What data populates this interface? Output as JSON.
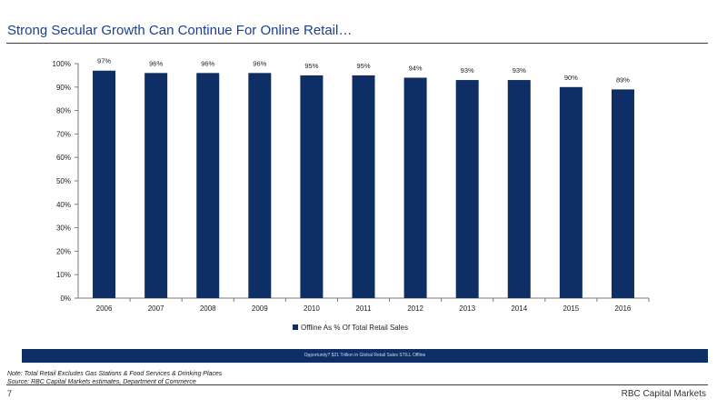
{
  "slide": {
    "title": "Strong Secular Growth Can Continue For Online Retail…",
    "banner": "Opportunity? $21 Trillion in Global Retail Sales STILL Offline",
    "note": "Note: Total Retail Excludes Gas Stations & Food Services & Drinking Places",
    "source": "Source: RBC Capital Markets estimates, Department of Commerce",
    "page_number": "7",
    "brand": "RBC Capital Markets"
  },
  "colors": {
    "bar": "#0d2f66",
    "title": "#1d3f8f"
  },
  "chart_data": {
    "type": "bar",
    "categories": [
      "2006",
      "2007",
      "2008",
      "2009",
      "2010",
      "2011",
      "2012",
      "2013",
      "2014",
      "2015",
      "2016"
    ],
    "series": [
      {
        "name": "Offline As % Of Total Retail Sales",
        "values": [
          97,
          96,
          96,
          96,
          95,
          95,
          94,
          93,
          93,
          90,
          89
        ]
      }
    ],
    "data_labels": [
      "97%",
      "96%",
      "96%",
      "96%",
      "95%",
      "95%",
      "94%",
      "93%",
      "93%",
      "90%",
      "89%"
    ],
    "y_ticks": [
      0,
      10,
      20,
      30,
      40,
      50,
      60,
      70,
      80,
      90,
      100
    ],
    "y_tick_labels": [
      "0%",
      "10%",
      "20%",
      "30%",
      "40%",
      "50%",
      "60%",
      "70%",
      "80%",
      "90%",
      "100%"
    ],
    "ylim": [
      0,
      100
    ],
    "legend_position": "bottom-center",
    "grid": false
  }
}
